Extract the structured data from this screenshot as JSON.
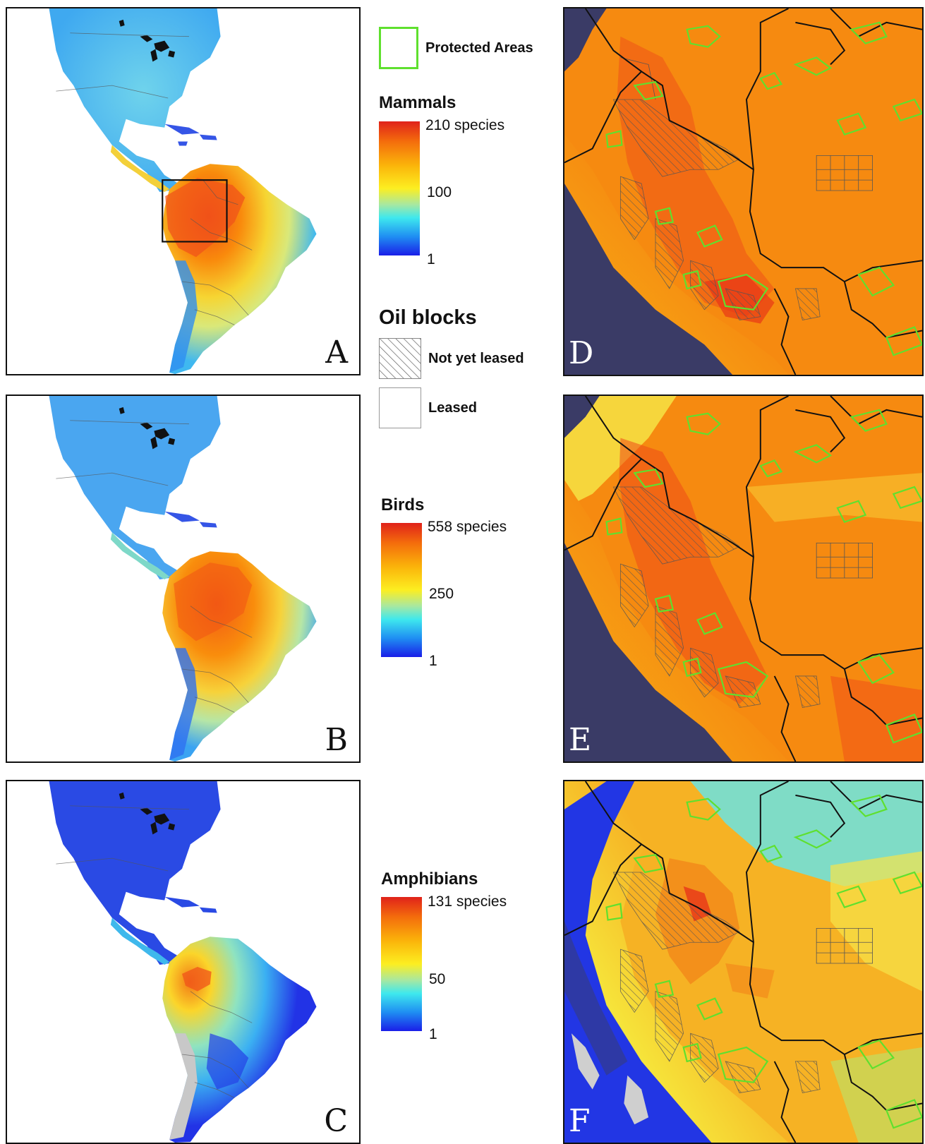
{
  "panels": {
    "a": {
      "letter": "A",
      "taxon": "Mammals"
    },
    "b": {
      "letter": "B",
      "taxon": "Birds"
    },
    "c": {
      "letter": "C",
      "taxon": "Amphibians"
    },
    "d": {
      "letter": "D",
      "taxon": "Mammals"
    },
    "e": {
      "letter": "E",
      "taxon": "Birds"
    },
    "f": {
      "letter": "F",
      "taxon": "Amphibians"
    }
  },
  "legend": {
    "protected_areas": {
      "label": "Protected Areas",
      "color": "#5fe02e"
    },
    "oil_blocks": {
      "title": "Oil blocks",
      "not_leased": "Not yet leased",
      "leased": "Leased"
    },
    "mammals": {
      "title": "Mammals",
      "max": "210 species",
      "mid": "100",
      "min": "1"
    },
    "birds": {
      "title": "Birds",
      "max": "558 species",
      "mid": "250",
      "min": "1"
    },
    "amphibians": {
      "title": "Amphibians",
      "max": "131 species",
      "mid": "50",
      "min": "1"
    }
  },
  "colors": {
    "high": "#e0221a",
    "mid": "#fcee21",
    "low": "#1a1ee8",
    "ocean": "#3a3b66",
    "border": "#111111"
  }
}
